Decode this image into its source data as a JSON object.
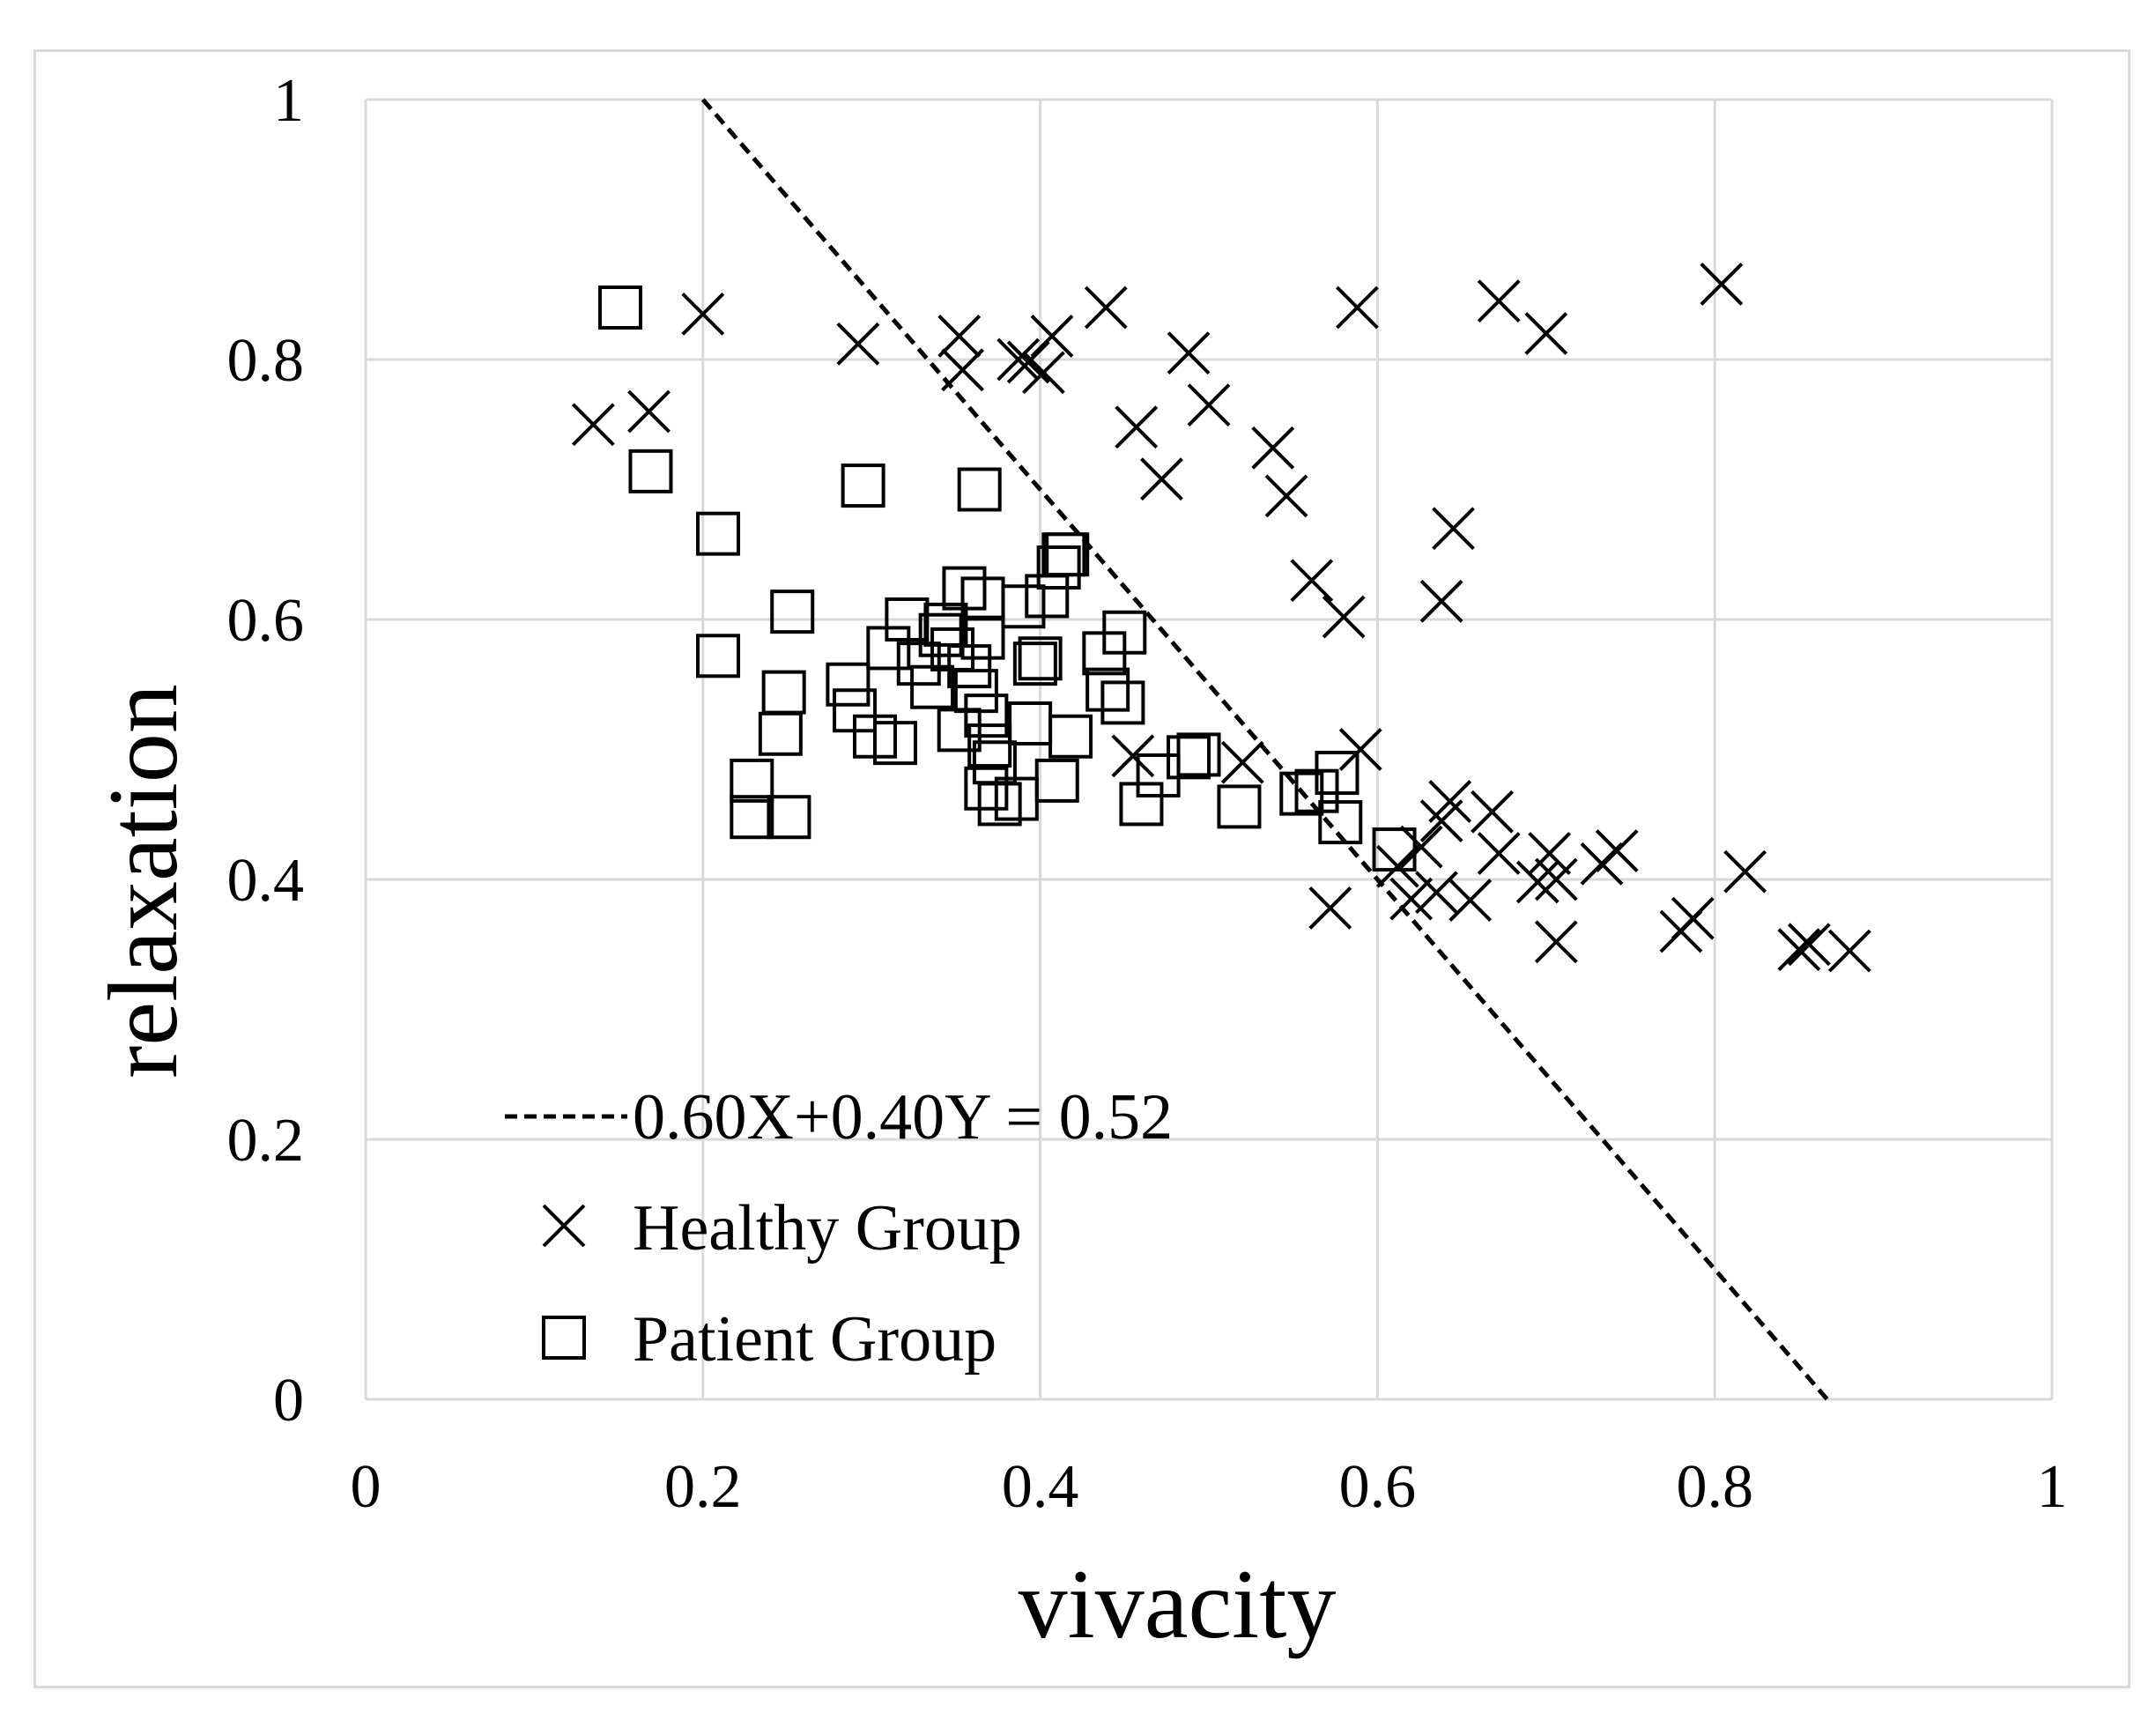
{
  "chart_data": {
    "type": "scatter",
    "xlabel": "vivacity",
    "ylabel": "relaxation",
    "xlim": [
      0,
      1
    ],
    "ylim": [
      0,
      1
    ],
    "x_ticks": [
      "0",
      "0.2",
      "0.4",
      "0.6",
      "0.8",
      "1"
    ],
    "y_ticks": [
      "0",
      "0.2",
      "0.4",
      "0.6",
      "0.8",
      "1"
    ],
    "grid": true,
    "legend_position": "bottom-left",
    "line": {
      "label": "0.60X+0.40Y = 0.52",
      "a": 0.6,
      "b": 0.4,
      "c": 0.52,
      "style": "dashed",
      "color": "#000000"
    },
    "series": [
      {
        "name": "Healthy Group",
        "marker": "x",
        "color": "#000000",
        "points": [
          [
            0.135,
            0.75
          ],
          [
            0.168,
            0.76
          ],
          [
            0.2,
            0.835
          ],
          [
            0.292,
            0.812
          ],
          [
            0.352,
            0.818
          ],
          [
            0.354,
            0.792
          ],
          [
            0.387,
            0.8
          ],
          [
            0.393,
            0.798
          ],
          [
            0.402,
            0.79
          ],
          [
            0.407,
            0.818
          ],
          [
            0.439,
            0.84
          ],
          [
            0.457,
            0.748
          ],
          [
            0.472,
            0.708
          ],
          [
            0.488,
            0.805
          ],
          [
            0.5,
            0.765
          ],
          [
            0.538,
            0.732
          ],
          [
            0.546,
            0.695
          ],
          [
            0.561,
            0.63
          ],
          [
            0.58,
            0.602
          ],
          [
            0.588,
            0.84
          ],
          [
            0.638,
            0.614
          ],
          [
            0.645,
            0.67
          ],
          [
            0.672,
            0.845
          ],
          [
            0.7,
            0.82
          ],
          [
            0.804,
            0.858
          ],
          [
            0.455,
            0.495
          ],
          [
            0.52,
            0.49
          ],
          [
            0.59,
            0.5
          ],
          [
            0.572,
            0.378
          ],
          [
            0.612,
            0.41
          ],
          [
            0.62,
            0.385
          ],
          [
            0.626,
            0.425
          ],
          [
            0.635,
            0.39
          ],
          [
            0.638,
            0.445
          ],
          [
            0.643,
            0.46
          ],
          [
            0.655,
            0.384
          ],
          [
            0.668,
            0.452
          ],
          [
            0.672,
            0.42
          ],
          [
            0.695,
            0.398
          ],
          [
            0.702,
            0.42
          ],
          [
            0.706,
            0.4
          ],
          [
            0.706,
            0.352
          ],
          [
            0.733,
            0.412
          ],
          [
            0.742,
            0.422
          ],
          [
            0.78,
            0.36
          ],
          [
            0.787,
            0.37
          ],
          [
            0.818,
            0.406
          ],
          [
            0.85,
            0.346
          ],
          [
            0.856,
            0.35
          ],
          [
            0.88,
            0.345
          ]
        ]
      },
      {
        "name": "Patient Group",
        "marker": "square",
        "color": "#000000",
        "points": [
          [
            0.151,
            0.84
          ],
          [
            0.169,
            0.714
          ],
          [
            0.209,
            0.666
          ],
          [
            0.209,
            0.572
          ],
          [
            0.253,
            0.606
          ],
          [
            0.248,
            0.544
          ],
          [
            0.246,
            0.512
          ],
          [
            0.229,
            0.476
          ],
          [
            0.229,
            0.448
          ],
          [
            0.251,
            0.448
          ],
          [
            0.286,
            0.55
          ],
          [
            0.29,
            0.53
          ],
          [
            0.295,
            0.703
          ],
          [
            0.302,
            0.51
          ],
          [
            0.31,
            0.578
          ],
          [
            0.314,
            0.505
          ],
          [
            0.321,
            0.6
          ],
          [
            0.328,
            0.566
          ],
          [
            0.336,
            0.548
          ],
          [
            0.341,
            0.588
          ],
          [
            0.344,
            0.596
          ],
          [
            0.348,
            0.577
          ],
          [
            0.352,
            0.515
          ],
          [
            0.355,
            0.624
          ],
          [
            0.358,
            0.564
          ],
          [
            0.362,
            0.545
          ],
          [
            0.364,
            0.7
          ],
          [
            0.366,
            0.616
          ],
          [
            0.366,
            0.586
          ],
          [
            0.368,
            0.526
          ],
          [
            0.37,
            0.503
          ],
          [
            0.368,
            0.47
          ],
          [
            0.373,
            0.49
          ],
          [
            0.376,
            0.458
          ],
          [
            0.386,
            0.462
          ],
          [
            0.39,
            0.61
          ],
          [
            0.394,
            0.52
          ],
          [
            0.397,
            0.566
          ],
          [
            0.4,
            0.57
          ],
          [
            0.404,
            0.618
          ],
          [
            0.41,
            0.476
          ],
          [
            0.411,
            0.64
          ],
          [
            0.414,
            0.65
          ],
          [
            0.416,
            0.65
          ],
          [
            0.418,
            0.51
          ],
          [
            0.438,
            0.574
          ],
          [
            0.44,
            0.546
          ],
          [
            0.449,
            0.536
          ],
          [
            0.45,
            0.59
          ],
          [
            0.46,
            0.458
          ],
          [
            0.47,
            0.48
          ],
          [
            0.488,
            0.494
          ],
          [
            0.494,
            0.496
          ],
          [
            0.518,
            0.456
          ],
          [
            0.555,
            0.466
          ],
          [
            0.564,
            0.468
          ],
          [
            0.576,
            0.482
          ],
          [
            0.578,
            0.444
          ],
          [
            0.61,
            0.423
          ]
        ]
      }
    ]
  }
}
